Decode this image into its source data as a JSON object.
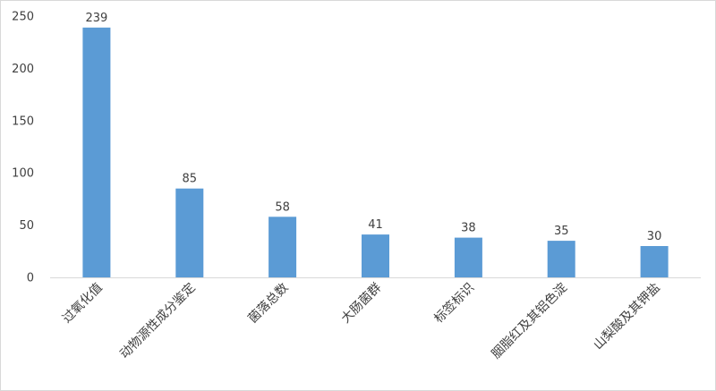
{
  "chart_data": {
    "type": "bar",
    "categories": [
      "过氧化值",
      "动物源性成分鉴定",
      "菌落总数",
      "大肠菌群",
      "标签标识",
      "胭脂红及其铝色淀",
      "山梨酸及其钾盐"
    ],
    "values": [
      239,
      85,
      58,
      41,
      38,
      35,
      30
    ],
    "title": "",
    "xlabel": "",
    "ylabel": "",
    "ylim": [
      0,
      250
    ],
    "yticks": [
      0,
      50,
      100,
      150,
      200,
      250
    ],
    "grid": false,
    "legend": "none",
    "bar_color": "#5b9bd5",
    "data_labels": [
      "239",
      "85",
      "58",
      "41",
      "38",
      "35",
      "30"
    ],
    "ytick_labels": [
      "0",
      "50",
      "100",
      "150",
      "200",
      "250"
    ]
  }
}
